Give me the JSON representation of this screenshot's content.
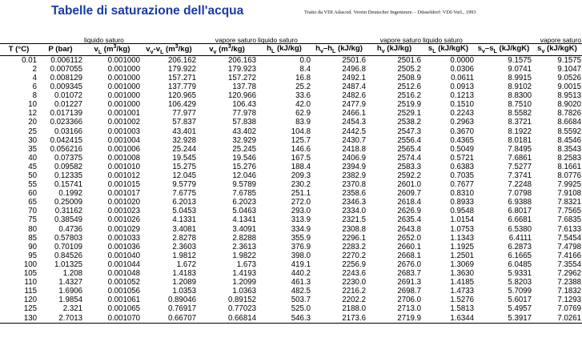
{
  "header": {
    "title": "Tabelle di saturazione dell'acqua",
    "source": "Tratto da VDI Atlas/ed. Verein Deutscher Ingenieure. - Düsseldorf: VDI-Verl., 1993"
  },
  "groups": {
    "liquid_left": "liquido saturo",
    "vapor_right": "vapore saturo",
    "liquid_mid": "liquido saturo",
    "vapor_mid": "vapore saturo",
    "liquid_s": "liquido saturo",
    "vapor_s": "vapore saturo"
  },
  "columns": [
    "T (°C)",
    "P (bar)",
    "vL (m³/kg)",
    "vv-vL (m³/kg)",
    "vv (m³/kg)",
    "hL (kJ/kg)",
    "hv–hL (kJ/kg)",
    "hv (kJ/kg)",
    "sL (kJ/kgK)",
    "sv–sL (kJ/kgK)",
    "sv (kJ/kgK)"
  ],
  "rows": [
    [
      "0.01",
      "0.006112",
      "0.001000",
      "206.162",
      "206.163",
      "0.0",
      "2501.6",
      "2501.6",
      "0.0000",
      "9.1575",
      "9.1575"
    ],
    [
      "2",
      "0.007055",
      "0.001000",
      "179.922",
      "179.923",
      "8.4",
      "2496.8",
      "2505.2",
      "0.0306",
      "9.0741",
      "9.1047"
    ],
    [
      "4",
      "0.008129",
      "0.001000",
      "157.271",
      "157.272",
      "16.8",
      "2492.1",
      "2508.9",
      "0.0611",
      "8.9915",
      "9.0526"
    ],
    [
      "6",
      "0.009345",
      "0.001000",
      "137.779",
      "137.78",
      "25.2",
      "2487.4",
      "2512.6",
      "0.0913",
      "8.9102",
      "9.0015"
    ],
    [
      "8",
      "0.01072",
      "0.001000",
      "120.965",
      "120.966",
      "33.6",
      "2482.6",
      "2516.2",
      "0.1213",
      "8.8300",
      "8.9513"
    ],
    [
      "10",
      "0.01227",
      "0.001000",
      "106.429",
      "106.43",
      "42.0",
      "2477.9",
      "2519.9",
      "0.1510",
      "8.7510",
      "8.9020"
    ],
    [
      "12",
      "0.017139",
      "0.001001",
      "77.977",
      "77.978",
      "62.9",
      "2466.1",
      "2529.1",
      "0.2243",
      "8.5582",
      "8.7826"
    ],
    [
      "20",
      "0.023366",
      "0.001002",
      "57.837",
      "57.838",
      "83.9",
      "2454.3",
      "2538.2",
      "0.2963",
      "8.3721",
      "8.6684"
    ],
    [
      "25",
      "0.03166",
      "0.001003",
      "43.401",
      "43.402",
      "104.8",
      "2442.5",
      "2547.3",
      "0.3670",
      "8.1922",
      "8.5592"
    ],
    [
      "30",
      "0.042415",
      "0.001004",
      "32.928",
      "32.929",
      "125.7",
      "2430.7",
      "2556.4",
      "0.4365",
      "8.0181",
      "8.4546"
    ],
    [
      "35",
      "0.056216",
      "0.001006",
      "25.244",
      "25.245",
      "146.6",
      "2418.8",
      "2565.4",
      "0.5049",
      "7.8495",
      "8.3543"
    ],
    [
      "40",
      "0.07375",
      "0.001008",
      "19.545",
      "19.546",
      "167.5",
      "2406.9",
      "2574.4",
      "0.5721",
      "7.6861",
      "8.2583"
    ],
    [
      "45",
      "0.09582",
      "0.001010",
      "15.275",
      "15.276",
      "188.4",
      "2394.9",
      "2583.3",
      "0.6383",
      "7.5277",
      "8.1661"
    ],
    [
      "50",
      "0.12335",
      "0.001012",
      "12.045",
      "12.046",
      "209.3",
      "2382.9",
      "2592.2",
      "0.7035",
      "7.3741",
      "8.0776"
    ],
    [
      "55",
      "0.15741",
      "0.001015",
      "9.5779",
      "9.5789",
      "230.2",
      "2370.8",
      "2601.0",
      "0.7677",
      "7.2248",
      "7.9925"
    ],
    [
      "60",
      "0.1992",
      "0.001017",
      "7.6775",
      "7.6785",
      "251.1",
      "2358.6",
      "2609.7",
      "0.8310",
      "7.0798",
      "7.9108"
    ],
    [
      "65",
      "0.25009",
      "0.001020",
      "6.2013",
      "6.2023",
      "272.0",
      "2346.3",
      "2618.4",
      "0.8933",
      "6.9388",
      "7.8321"
    ],
    [
      "70",
      "0.31162",
      "0.001023",
      "5.0453",
      "5.0463",
      "293.0",
      "2334.0",
      "2626.9",
      "0.9548",
      "6.8017",
      "7.7565"
    ],
    [
      "75",
      "0.38549",
      "0.001026",
      "4.1331",
      "4.1341",
      "313.9",
      "2321.5",
      "2635.4",
      "1.0154",
      "6.6681",
      "7.6835"
    ],
    [
      "80",
      "0.4736",
      "0.001029",
      "3.4081",
      "3.4091",
      "334.9",
      "2308.8",
      "2643.8",
      "1.0753",
      "6.5380",
      "7.6133"
    ],
    [
      "85",
      "0.57803",
      "0.001033",
      "2.8278",
      "2.8288",
      "355.9",
      "2296.1",
      "2652.0",
      "1.1343",
      "6.4111",
      "7.5454"
    ],
    [
      "90",
      "0.70109",
      "0.001036",
      "2.3603",
      "2.3613",
      "376.9",
      "2283.2",
      "2660.1",
      "1.1925",
      "6.2873",
      "7.4798"
    ],
    [
      "95",
      "0.84526",
      "0.001040",
      "1.9812",
      "1.9822",
      "398.0",
      "2270.2",
      "2668.1",
      "1.2501",
      "6.1665",
      "7.4166"
    ],
    [
      "100",
      "1.01325",
      "0.001044",
      "1.672",
      "1.673",
      "419.1",
      "2256.9",
      "2676.0",
      "1.3069",
      "6.0485",
      "7.3554"
    ],
    [
      "105",
      "1.208",
      "0.001048",
      "1.4183",
      "1.4193",
      "440.2",
      "2243.6",
      "2683.7",
      "1.3630",
      "5.9331",
      "7.2962"
    ],
    [
      "110",
      "1.4327",
      "0.001052",
      "1.2089",
      "1.2099",
      "461.3",
      "2230.0",
      "2691.3",
      "1.4185",
      "5.8203",
      "7.2388"
    ],
    [
      "115",
      "1.6906",
      "0.001056",
      "1.0353",
      "1.0363",
      "482.5",
      "2216.2",
      "2698.7",
      "1.4733",
      "5.7099",
      "7.1832"
    ],
    [
      "120",
      "1.9854",
      "0.001061",
      "0.89046",
      "0.89152",
      "503.7",
      "2202.2",
      "2706.0",
      "1.5276",
      "5.6017",
      "7.1293"
    ],
    [
      "125",
      "2.321",
      "0.001065",
      "0.76917",
      "0.77023",
      "525.0",
      "2188.0",
      "2713.0",
      "1.5813",
      "5.4957",
      "7.0769"
    ],
    [
      "130",
      "2.7013",
      "0.001070",
      "0.66707",
      "0.66814",
      "546.3",
      "2173.6",
      "2719.9",
      "1.6344",
      "5.3917",
      "7.0261"
    ]
  ]
}
